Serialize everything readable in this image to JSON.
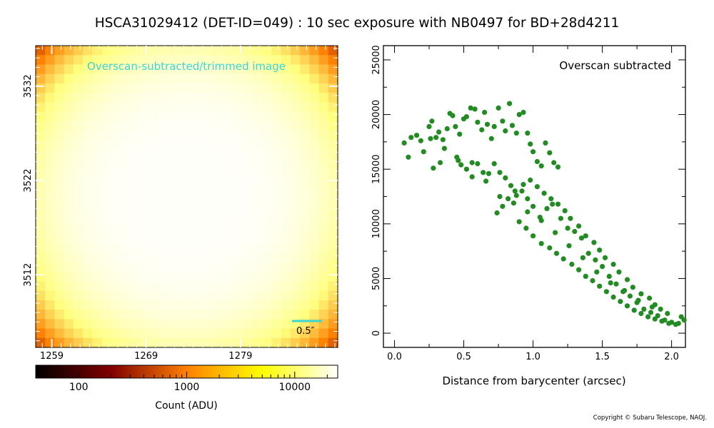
{
  "title": "HSCA31029412 (DET-ID=049) :  10 sec exposure with NB0497 for BD+28d4211",
  "copyright": "Copyright © Subaru Telescope, NAOJ.",
  "chart_data": [
    {
      "type": "heatmap",
      "annotation": "Overscan-subtracted/trimmed image",
      "scale_bar_label": "0.5″",
      "scale_bar_color": "#39d6d6",
      "x_ticks": [
        "1259",
        "1269",
        "1279"
      ],
      "y_ticks": [
        "3532",
        "3522",
        "3512"
      ],
      "x_tick_values": [
        1259,
        1269,
        1279
      ],
      "y_tick_values": [
        3532,
        3522,
        3512
      ],
      "xlim": [
        1257.3,
        1289.3
      ],
      "ylim": [
        3504.3,
        3536.3
      ],
      "center": [
        1273.3,
        3520.3
      ],
      "peak": 23000,
      "sigma": 15,
      "core_exponent": 4,
      "colormap": "afmhot",
      "colorbar": {
        "label": "Count (ADU)",
        "ticks": [
          "100",
          "1000",
          "10000"
        ],
        "tick_values": [
          100,
          1000,
          10000
        ],
        "range": [
          40,
          25000
        ],
        "scale": "log"
      }
    },
    {
      "type": "scatter",
      "annotation": "Overscan subtracted",
      "xlabel": "Distance from barycenter (arcsec)",
      "x_ticks": [
        "0.0",
        "0.5",
        "1.0",
        "1.5",
        "2.0"
      ],
      "y_ticks": [
        "0",
        "5000",
        "10000",
        "15000",
        "20000",
        "25000"
      ],
      "x_tick_values": [
        0.0,
        0.5,
        1.0,
        1.5,
        2.0
      ],
      "y_tick_values": [
        0,
        5000,
        10000,
        15000,
        20000,
        25000
      ],
      "xlim": [
        -0.08,
        2.1
      ],
      "ylim": [
        -1300,
        26300
      ],
      "grid": false,
      "point_color": "#228b22",
      "points": [
        [
          0.1,
          16100
        ],
        [
          0.07,
          17400
        ],
        [
          0.12,
          17900
        ],
        [
          0.19,
          17600
        ],
        [
          0.25,
          18900
        ],
        [
          0.27,
          19400
        ],
        [
          0.21,
          16600
        ],
        [
          0.3,
          17900
        ],
        [
          0.32,
          18400
        ],
        [
          0.35,
          17700
        ],
        [
          0.28,
          15100
        ],
        [
          0.33,
          15600
        ],
        [
          0.38,
          18700
        ],
        [
          0.4,
          20100
        ],
        [
          0.42,
          19900
        ],
        [
          0.44,
          18900
        ],
        [
          0.47,
          18200
        ],
        [
          0.5,
          19600
        ],
        [
          0.52,
          19800
        ],
        [
          0.55,
          20600
        ],
        [
          0.58,
          20500
        ],
        [
          0.6,
          19300
        ],
        [
          0.63,
          18600
        ],
        [
          0.65,
          20200
        ],
        [
          0.67,
          19100
        ],
        [
          0.7,
          17800
        ],
        [
          0.72,
          18900
        ],
        [
          0.75,
          20600
        ],
        [
          0.78,
          19400
        ],
        [
          0.8,
          18500
        ],
        [
          0.83,
          21000
        ],
        [
          0.85,
          19000
        ],
        [
          0.88,
          18300
        ],
        [
          0.9,
          20000
        ],
        [
          0.93,
          20200
        ],
        [
          0.96,
          18300
        ],
        [
          0.98,
          17300
        ],
        [
          1.0,
          16600
        ],
        [
          1.03,
          15700
        ],
        [
          1.06,
          15300
        ],
        [
          1.09,
          17400
        ],
        [
          1.12,
          16500
        ],
        [
          1.15,
          15600
        ],
        [
          1.18,
          15200
        ],
        [
          0.45,
          16100
        ],
        [
          0.48,
          15400
        ],
        [
          0.52,
          15000
        ],
        [
          0.56,
          15600
        ],
        [
          0.6,
          15500
        ],
        [
          0.64,
          14700
        ],
        [
          0.68,
          14600
        ],
        [
          0.72,
          15500
        ],
        [
          0.76,
          14700
        ],
        [
          0.8,
          14200
        ],
        [
          0.84,
          13500
        ],
        [
          0.88,
          12600
        ],
        [
          0.92,
          13000
        ],
        [
          0.96,
          12300
        ],
        [
          1.0,
          11600
        ],
        [
          1.05,
          10600
        ],
        [
          1.1,
          11400
        ],
        [
          1.14,
          11800
        ],
        [
          1.2,
          10500
        ],
        [
          1.25,
          9600
        ],
        [
          1.3,
          9300
        ],
        [
          1.35,
          8700
        ],
        [
          1.4,
          7300
        ],
        [
          1.45,
          6700
        ],
        [
          1.5,
          6100
        ],
        [
          1.55,
          5200
        ],
        [
          1.6,
          4500
        ],
        [
          1.65,
          3800
        ],
        [
          1.7,
          3400
        ],
        [
          1.75,
          2800
        ],
        [
          1.8,
          2200
        ],
        [
          1.85,
          1900
        ],
        [
          1.9,
          1600
        ],
        [
          1.95,
          1200
        ],
        [
          2.0,
          1000
        ],
        [
          2.05,
          900
        ],
        [
          2.09,
          1200
        ],
        [
          1.92,
          2200
        ],
        [
          1.88,
          2600
        ],
        [
          1.84,
          3200
        ],
        [
          1.78,
          3600
        ],
        [
          1.72,
          4200
        ],
        [
          1.68,
          4900
        ],
        [
          1.62,
          5600
        ],
        [
          1.58,
          6300
        ],
        [
          1.52,
          6900
        ],
        [
          1.48,
          7600
        ],
        [
          1.44,
          8300
        ],
        [
          1.38,
          8900
        ],
        [
          1.33,
          9800
        ],
        [
          1.27,
          10500
        ],
        [
          1.23,
          11200
        ],
        [
          1.18,
          11800
        ],
        [
          1.13,
          12300
        ],
        [
          1.08,
          12800
        ],
        [
          1.03,
          13400
        ],
        [
          0.98,
          14000
        ],
        [
          0.93,
          13600
        ],
        [
          0.87,
          13000
        ],
        [
          0.82,
          12300
        ],
        [
          0.78,
          11600
        ],
        [
          0.74,
          11000
        ],
        [
          0.9,
          10200
        ],
        [
          0.95,
          9600
        ],
        [
          1.0,
          8900
        ],
        [
          1.06,
          8200
        ],
        [
          1.12,
          7800
        ],
        [
          1.17,
          7300
        ],
        [
          1.22,
          6800
        ],
        [
          1.28,
          6300
        ],
        [
          1.33,
          5800
        ],
        [
          1.38,
          5200
        ],
        [
          1.43,
          4800
        ],
        [
          1.48,
          4300
        ],
        [
          1.53,
          3800
        ],
        [
          1.58,
          3300
        ],
        [
          1.63,
          2900
        ],
        [
          1.68,
          2500
        ],
        [
          1.73,
          2100
        ],
        [
          1.78,
          1800
        ],
        [
          1.83,
          1500
        ],
        [
          1.88,
          1300
        ],
        [
          1.93,
          1100
        ],
        [
          1.98,
          900
        ],
        [
          2.03,
          800
        ],
        [
          2.07,
          1500
        ],
        [
          1.97,
          1800
        ],
        [
          1.86,
          2400
        ],
        [
          1.76,
          3000
        ],
        [
          1.66,
          3900
        ],
        [
          1.56,
          4600
        ],
        [
          1.46,
          5600
        ],
        [
          1.36,
          6900
        ],
        [
          1.26,
          8000
        ],
        [
          1.16,
          9200
        ],
        [
          1.06,
          10300
        ],
        [
          0.96,
          11100
        ],
        [
          0.86,
          11900
        ],
        [
          0.76,
          12500
        ],
        [
          0.66,
          13900
        ],
        [
          0.56,
          14300
        ],
        [
          0.46,
          15800
        ],
        [
          0.36,
          16900
        ],
        [
          0.26,
          17800
        ],
        [
          0.16,
          18100
        ]
      ]
    }
  ]
}
